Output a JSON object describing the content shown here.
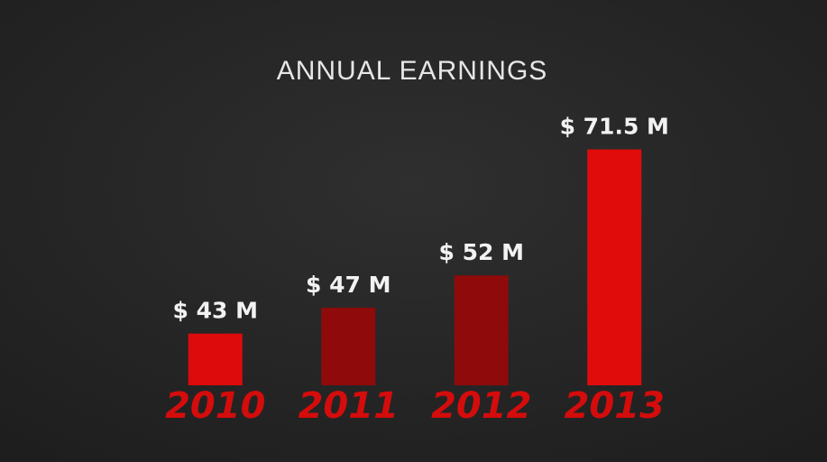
{
  "chart_data": {
    "type": "bar",
    "title": "ANNUAL EARNINGS",
    "categories": [
      "2010",
      "2011",
      "2012",
      "2013"
    ],
    "values": [
      43,
      47,
      52,
      71.5
    ],
    "value_labels": [
      "$ 43 M",
      "$ 47 M",
      "$ 52 M",
      "$ 71.5 M"
    ],
    "colors": [
      "#dd0b0b",
      "#8f0a0a",
      "#8f0a0a",
      "#e00c0c"
    ],
    "ylim": [
      35,
      72
    ]
  }
}
